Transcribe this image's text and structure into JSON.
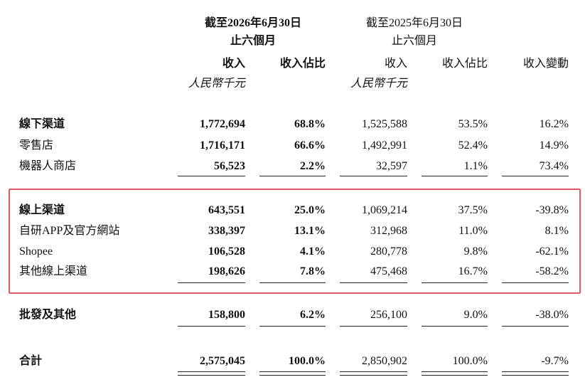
{
  "header": {
    "period_2026": [
      "截至2026年6月30日",
      "止六個月"
    ],
    "period_2025": [
      "截至2025年6月30日",
      "止六個月"
    ],
    "columns": [
      "收入",
      "收入佔比",
      "收入",
      "收入佔比",
      "收入變動"
    ],
    "unit_2026": "人民幣千元",
    "unit_2025": "人民幣千元"
  },
  "table": {
    "rows": [
      [
        "線下渠道",
        "1,772,694",
        "68.8%",
        "1,525,588",
        "53.5%",
        "16.2%"
      ],
      [
        "零售店",
        "1,716,171",
        "66.6%",
        "1,492,991",
        "52.4%",
        "14.9%"
      ],
      [
        "機器人商店",
        "56,523",
        "2.2%",
        "32,597",
        "1.1%",
        "73.4%"
      ],
      [
        "線上渠道",
        "643,551",
        "25.0%",
        "1,069,214",
        "37.5%",
        "-39.8%"
      ],
      [
        "自研APP及官方網站",
        "338,397",
        "13.1%",
        "312,968",
        "11.0%",
        "8.1%"
      ],
      [
        "Shopee",
        "106,528",
        "4.1%",
        "280,778",
        "9.8%",
        "-62.1%"
      ],
      [
        "其他線上渠道",
        "198,626",
        "7.8%",
        "475,468",
        "16.7%",
        "-58.2%"
      ],
      [
        "批發及其他",
        "158,800",
        "6.2%",
        "256,100",
        "9.0%",
        "-38.0%"
      ],
      [
        "合計",
        "2,575,045",
        "100.0%",
        "2,850,902",
        "100.0%",
        "-9.7%"
      ]
    ]
  }
}
